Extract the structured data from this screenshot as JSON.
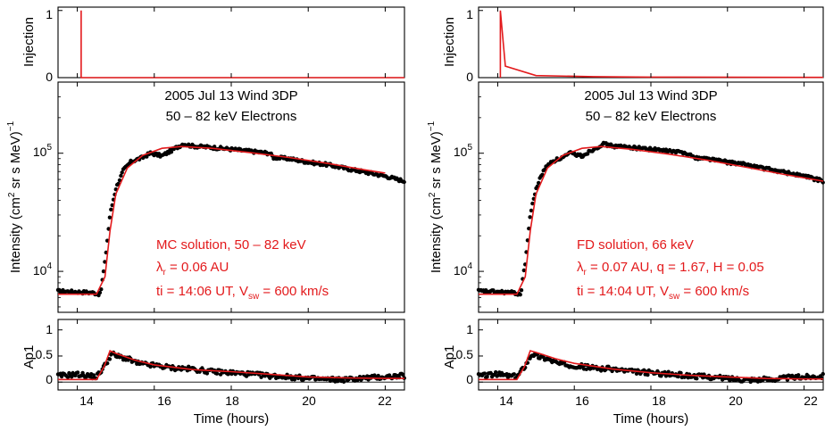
{
  "colors": {
    "model": "#e31a1c",
    "data": "#000000",
    "axis": "#000000"
  },
  "panels": [
    {
      "title_line1": "2005 Jul 13  Wind 3DP",
      "title_line2": "50 – 82 keV Electrons",
      "solution_line1": "MC solution,  50 – 82 keV",
      "solution_line2_pre": "λ",
      "solution_line2_sub": "r",
      "solution_line2_post": " = 0.06 AU",
      "solution_line3_pre": "ti = 14:06 UT,  V",
      "solution_line3_sub": "sw",
      "solution_line3_post": " = 600 km/s",
      "ylabel_injection": "Injection",
      "ylabel_intensity_pre": "Intensity (cm",
      "ylabel_intensity_sup1": "2",
      "ylabel_intensity_mid": " sr s MeV)",
      "ylabel_intensity_sup2": "−1",
      "ylabel_ap1": "Ap1",
      "xlabel": "Time (hours)",
      "inj_ticks": [
        "0",
        "1"
      ],
      "int_ticks": [
        {
          "base": "10",
          "exp": "4"
        },
        {
          "base": "10",
          "exp": "5"
        }
      ],
      "ap_ticks": [
        "0",
        "0.5",
        "1"
      ],
      "x_ticks": [
        "14",
        "16",
        "18",
        "20",
        "22"
      ]
    },
    {
      "title_line1": "2005 Jul 13  Wind 3DP",
      "title_line2": "50 – 82 keV Electrons",
      "solution_line1": "FD solution,  66 keV",
      "solution_line2_pre": "λ",
      "solution_line2_sub": "r",
      "solution_line2_post": " = 0.07 AU,  q = 1.67, H = 0.05",
      "solution_line3_pre": "ti = 14:04 UT,  V",
      "solution_line3_sub": "sw",
      "solution_line3_post": " = 600 km/s",
      "ylabel_injection": "Injection",
      "ylabel_intensity_pre": "Intensity (cm",
      "ylabel_intensity_sup1": "2",
      "ylabel_intensity_mid": " sr s MeV)",
      "ylabel_intensity_sup2": "−1",
      "ylabel_ap1": "Ap1",
      "xlabel": "Time (hours)",
      "inj_ticks": [
        "0",
        "1"
      ],
      "int_ticks": [
        {
          "base": "10",
          "exp": "4"
        },
        {
          "base": "10",
          "exp": "5"
        }
      ],
      "ap_ticks": [
        "0",
        "0.5",
        "1"
      ],
      "x_ticks": [
        "14",
        "16",
        "18",
        "20",
        "22"
      ]
    }
  ],
  "chart_data": [
    {
      "type": "line",
      "xlim": [
        13.5,
        22.5
      ],
      "injection": {
        "ylim": [
          0,
          1.05
        ],
        "x": [
          14.1,
          14.1,
          14.1,
          22.5
        ],
        "y": [
          0,
          1,
          0,
          0
        ]
      },
      "intensity": {
        "log_scale": true,
        "ylim": [
          4500,
          400000
        ],
        "model": {
          "x": [
            13.5,
            14.5,
            14.72,
            14.85,
            15.0,
            15.3,
            15.7,
            16.2,
            16.7,
            17.5,
            18.5,
            19.5,
            20.5,
            21.5,
            22.0
          ],
          "y": [
            6400,
            6400,
            9000,
            22000,
            45000,
            75000,
            96000,
            110000,
            114000,
            110000,
            101000,
            92000,
            82000,
            72000,
            68000
          ]
        },
        "observed": {
          "x": [
            13.5,
            14.0,
            14.4,
            14.6,
            14.72,
            14.85,
            15.0,
            15.2,
            15.4,
            15.7,
            15.9,
            16.2,
            16.5,
            16.75,
            17.0,
            17.5,
            18.0,
            18.5,
            19.0,
            19.1,
            19.5,
            20.0,
            20.5,
            21.0,
            21.5,
            22.0,
            22.5
          ],
          "y": [
            6800,
            6700,
            6600,
            6400,
            12000,
            30000,
            50000,
            72000,
            85000,
            92000,
            100000,
            95000,
            108000,
            120000,
            115000,
            112000,
            108000,
            104000,
            100000,
            92000,
            90000,
            84000,
            80000,
            74000,
            69000,
            64000,
            58000
          ]
        }
      },
      "ap1": {
        "ylim": [
          -0.15,
          1.2
        ],
        "model": {
          "x": [
            13.5,
            14.5,
            14.7,
            14.85,
            15.0,
            15.5,
            16.0,
            17.0,
            18.0,
            19.0,
            20.0,
            21.0,
            22.0,
            22.5
          ],
          "y": [
            0.05,
            0.05,
            0.3,
            0.6,
            0.55,
            0.42,
            0.33,
            0.24,
            0.2,
            0.15,
            0.1,
            0.08,
            0.07,
            0.07
          ]
        },
        "observed": {
          "x": [
            13.5,
            14.0,
            14.5,
            14.7,
            14.9,
            15.0,
            15.3,
            15.6,
            16.0,
            16.5,
            17.0,
            17.5,
            18.0,
            18.5,
            19.0,
            19.5,
            20.0,
            20.5,
            21.0,
            21.5,
            22.0,
            22.5
          ],
          "y": [
            0.12,
            0.15,
            0.1,
            0.3,
            0.55,
            0.5,
            0.45,
            0.35,
            0.32,
            0.27,
            0.25,
            0.2,
            0.18,
            0.15,
            0.12,
            0.1,
            0.07,
            0.05,
            0.05,
            0.08,
            0.1,
            0.12
          ]
        }
      }
    },
    {
      "type": "line",
      "xlim": [
        13.5,
        22.5
      ],
      "injection": {
        "ylim": [
          0,
          1.05
        ],
        "x": [
          14.07,
          14.07,
          14.2,
          15.0,
          16.5,
          18.0,
          22.5
        ],
        "y": [
          0,
          1,
          0.17,
          0.03,
          0.015,
          0.008,
          0.004
        ]
      },
      "intensity": {
        "log_scale": true,
        "ylim": [
          4500,
          400000
        ],
        "model": {
          "x": [
            13.5,
            14.5,
            14.72,
            14.85,
            15.0,
            15.3,
            15.7,
            16.2,
            16.7,
            17.5,
            18.5,
            19.5,
            20.5,
            21.5,
            22.5
          ],
          "y": [
            6400,
            6400,
            9000,
            22000,
            45000,
            75000,
            96000,
            110000,
            114000,
            108000,
            98000,
            87000,
            76000,
            66000,
            58000
          ]
        },
        "observed": {
          "x": [
            13.5,
            14.0,
            14.4,
            14.6,
            14.72,
            14.85,
            15.0,
            15.2,
            15.4,
            15.7,
            15.9,
            16.2,
            16.5,
            16.75,
            17.0,
            17.5,
            18.0,
            18.5,
            19.0,
            19.1,
            19.5,
            20.0,
            20.5,
            21.0,
            21.5,
            22.0,
            22.5
          ],
          "y": [
            6800,
            6700,
            6600,
            6400,
            12000,
            30000,
            50000,
            72000,
            85000,
            92000,
            100000,
            95000,
            108000,
            120000,
            115000,
            112000,
            108000,
            104000,
            100000,
            92000,
            90000,
            84000,
            80000,
            74000,
            69000,
            64000,
            58000
          ]
        }
      },
      "ap1": {
        "ylim": [
          -0.15,
          1.2
        ],
        "model": {
          "x": [
            13.5,
            14.5,
            14.7,
            14.85,
            15.0,
            15.5,
            16.0,
            17.0,
            18.0,
            19.0,
            20.0,
            21.0,
            22.0,
            22.5
          ],
          "y": [
            0.05,
            0.05,
            0.3,
            0.6,
            0.57,
            0.45,
            0.36,
            0.25,
            0.18,
            0.13,
            0.1,
            0.07,
            0.06,
            0.06
          ]
        },
        "observed": {
          "x": [
            13.5,
            14.0,
            14.5,
            14.7,
            14.9,
            15.0,
            15.3,
            15.6,
            16.0,
            16.5,
            17.0,
            17.5,
            18.0,
            18.5,
            19.0,
            19.5,
            20.0,
            20.5,
            21.0,
            21.5,
            22.0,
            22.5
          ],
          "y": [
            0.12,
            0.15,
            0.1,
            0.3,
            0.55,
            0.5,
            0.45,
            0.35,
            0.32,
            0.27,
            0.25,
            0.2,
            0.18,
            0.15,
            0.12,
            0.1,
            0.07,
            0.05,
            0.05,
            0.08,
            0.1,
            0.12
          ]
        }
      }
    }
  ]
}
